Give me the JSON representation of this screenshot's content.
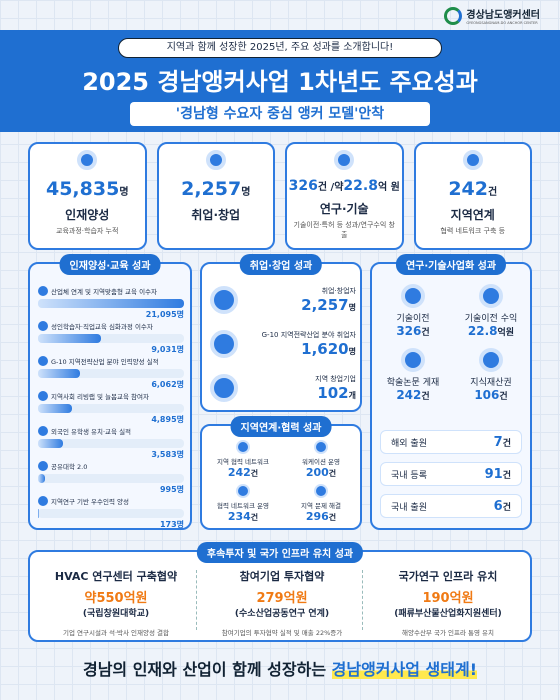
{
  "logo": {
    "name": "경상남도앵커센터",
    "subname": "GYEONGSANGNAM-DO ANCHOR CENTER"
  },
  "header": {
    "intro": "지역과 함께 성장한 2025년, 주요 성과를 소개합니다!",
    "title": "2025 경남앵커사업 1차년도 주요성과",
    "subtitle": "'경남형 수요자 중심 앵커 모델'안착"
  },
  "kpis": [
    {
      "value": "45,835",
      "unit": "명",
      "label": "인재양성",
      "note": "교육과정·학습자 누적"
    },
    {
      "value": "2,257",
      "unit": "명",
      "label": "취업·창업"
    },
    {
      "value": "326",
      "unit": "건 /약",
      "value2": "22.8",
      "unit2": "억 원",
      "label": "연구·기술",
      "note": "기술이전·특허 등 성과/연구수익 창출"
    },
    {
      "value": "242",
      "unit": "건",
      "label": "지역연계",
      "note": "협력 네트워크 구축 등"
    }
  ],
  "education": {
    "title": "인재양성·교육 성과",
    "items": [
      {
        "label": "산업체 연계 및 지역맞춤형 교육 이수자",
        "value": 21095,
        "value_label": "21,095명"
      },
      {
        "label": "성인학습자·직업교육 심화과정 이수자",
        "value": 9031,
        "value_label": "9,031명"
      },
      {
        "label": "G-10 지역전략산업 분야 인력양성 실적",
        "value": 6062,
        "value_label": "6,062명"
      },
      {
        "label": "지역사회 리빙랩 및 늘봄교육 참여자",
        "value": 4895,
        "value_label": "4,895명"
      },
      {
        "label": "외국인 유학생 유치·교육 실적",
        "value": 3583,
        "value_label": "3,583명"
      },
      {
        "label": "공유대학 2.0",
        "value": 995,
        "value_label": "995명"
      },
      {
        "label": "지역연구 기반 우수인력 양성",
        "value": 173,
        "value_label": "173명"
      }
    ]
  },
  "employment": {
    "title": "취업·창업 성과",
    "items": [
      {
        "label": "취업·창업자",
        "value": "2,257",
        "unit": "명"
      },
      {
        "label": "G-10 지역전략산업 분야 취업자",
        "value": "1,620",
        "unit": "명"
      },
      {
        "label": "지역 창업기업",
        "value": "102",
        "unit": "개"
      }
    ]
  },
  "regional": {
    "title": "지역연계·협력 성과",
    "items": [
      {
        "label": "지역 협력 네트워크",
        "value": "242",
        "unit": "건"
      },
      {
        "label": "워케이션 운영",
        "value": "200",
        "unit": "건"
      },
      {
        "label": "협력 네트워크 운영",
        "value": "234",
        "unit": "건"
      },
      {
        "label": "지역 문제 해결",
        "value": "296",
        "unit": "건"
      }
    ]
  },
  "research": {
    "title": "연구·기술사업화 성과",
    "items": [
      {
        "label": "기술이전",
        "value": "326",
        "unit": "건"
      },
      {
        "label": "기술이전 수익",
        "value": "22.8",
        "unit": "억원"
      },
      {
        "label": "학술논문 게재",
        "value": "242",
        "unit": "건"
      },
      {
        "label": "지식재산권",
        "value": "106",
        "unit": "건"
      }
    ],
    "list": [
      {
        "label": "해외 출원",
        "value": "7",
        "unit": "건"
      },
      {
        "label": "국내 등록",
        "value": "91",
        "unit": "건"
      },
      {
        "label": "국내 출원",
        "value": "6",
        "unit": "건"
      }
    ]
  },
  "investment": {
    "title": "후속투자 및 국가 인프라 유치 성과",
    "items": [
      {
        "title": "HVAC 연구센터 구축협약",
        "prefix": "약",
        "value": "550",
        "unit": "억원",
        "org": "(국립창원대학교)",
        "note": "기업 연구시설과 석·박사 인재양성 결합"
      },
      {
        "title": "참여기업 투자협약",
        "value": "279",
        "unit": "억원",
        "org": "(수소산업공동연구 연계)",
        "note": "참여기업의 투자협약 실적 및 매출 22%증가"
      },
      {
        "title": "국가연구 인프라 유치",
        "value": "190",
        "unit": "억원",
        "org": "(패류부산물산업화지원센터)",
        "note": "해양수산부 국가 인프라 통영 유치"
      }
    ]
  },
  "footer": {
    "text": "경남의 인재와 산업이 함께 성장하는 ",
    "highlight": "경남앵커사업 생태계!"
  }
}
